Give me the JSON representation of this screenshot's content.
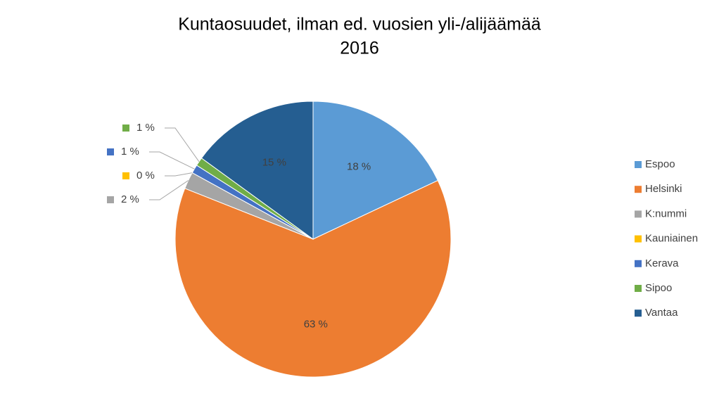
{
  "chart_data": {
    "type": "pie",
    "title": "Kuntaosuudet, ilman ed. vuosien yli-/alijäämää",
    "subtitle": "2016",
    "categories": [
      "Espoo",
      "Helsinki",
      "K:nummi",
      "Kauniainen",
      "Kerava",
      "Sipoo",
      "Vantaa"
    ],
    "values": [
      18,
      63,
      2,
      0,
      1,
      1,
      15
    ],
    "value_labels": [
      "18 %",
      "63 %",
      "2 %",
      "0 %",
      "1 %",
      "1 %",
      "15 %"
    ],
    "colors": [
      "#5b9bd5",
      "#ed7d31",
      "#a5a5a5",
      "#ffc000",
      "#4472c4",
      "#70ad47",
      "#255e91"
    ],
    "legend": "right"
  }
}
